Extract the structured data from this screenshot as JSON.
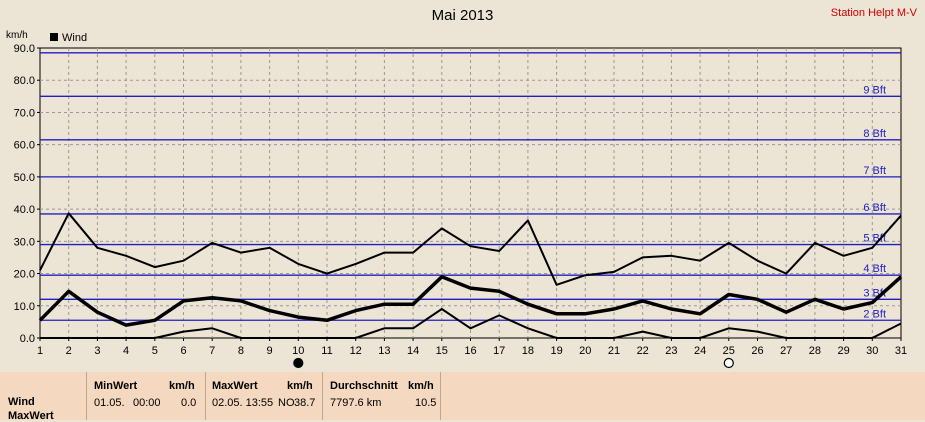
{
  "header": {
    "title": "Mai 2013",
    "station": "Station Helpt M-V",
    "y_unit": "km/h",
    "legend_label": "Wind"
  },
  "chart_data": {
    "type": "line",
    "title": "Mai 2013",
    "ylabel": "km/h",
    "ylim": [
      0,
      90
    ],
    "xlim": [
      1,
      31
    ],
    "x": [
      1,
      2,
      3,
      4,
      5,
      6,
      7,
      8,
      9,
      10,
      11,
      12,
      13,
      14,
      15,
      16,
      17,
      18,
      19,
      20,
      21,
      22,
      23,
      24,
      25,
      26,
      27,
      28,
      29,
      30,
      31
    ],
    "y_ticks": [
      "0.0",
      "10.0",
      "20.0",
      "30.0",
      "40.0",
      "50.0",
      "60.0",
      "70.0",
      "80.0",
      "90.0"
    ],
    "grid": true,
    "legend": "top-left",
    "series": [
      {
        "name": "Wind",
        "role": "max",
        "stroke": 2,
        "values": [
          21,
          38.7,
          28,
          25.5,
          22,
          24,
          29.5,
          26.5,
          28,
          23,
          20,
          23,
          26.5,
          26.5,
          34,
          28.5,
          27,
          36.5,
          16.5,
          19.5,
          20.5,
          25,
          25.5,
          24,
          29.5,
          24,
          20,
          29.5,
          25.5,
          28,
          38
        ]
      },
      {
        "name": "Wind",
        "role": "mean",
        "stroke": 3.5,
        "values": [
          5.5,
          14.5,
          8,
          4,
          5.5,
          11.5,
          12.5,
          11.5,
          8.5,
          6.5,
          5.5,
          8.5,
          10.5,
          10.5,
          19,
          15.5,
          14.5,
          10.5,
          7.5,
          7.5,
          9,
          11.5,
          9,
          7.5,
          13.5,
          12,
          8,
          12,
          9,
          11,
          19
        ]
      },
      {
        "name": "Wind",
        "role": "min",
        "stroke": 2,
        "values": [
          0,
          0,
          0,
          0,
          0,
          2,
          3,
          0,
          0,
          0,
          0,
          0,
          3,
          3,
          9,
          3,
          7,
          3,
          0,
          0,
          0,
          2,
          0,
          0,
          3,
          2,
          0,
          0,
          0,
          0,
          4.5
        ]
      }
    ],
    "beaufort_lines": [
      {
        "label": "2 Bft",
        "value": 5.5
      },
      {
        "label": "3 Bft",
        "value": 12
      },
      {
        "label": "4 Bft",
        "value": 19.5
      },
      {
        "label": "5 Bft",
        "value": 29
      },
      {
        "label": "6 Bft",
        "value": 38.5
      },
      {
        "label": "7 Bft",
        "value": 50
      },
      {
        "label": "8 Bft",
        "value": 61.5
      },
      {
        "label": "9 Bft",
        "value": 75
      },
      {
        "label": "",
        "value": 88.5
      }
    ],
    "moon_phases": [
      {
        "day": 10,
        "phase": "new-moon"
      },
      {
        "day": 25,
        "phase": "full-moon"
      }
    ],
    "colors": {
      "beaufort": "#2020c0",
      "grid": "#999999",
      "series": "#000000",
      "plot_bg": "#ece4d4"
    }
  },
  "stats": {
    "row_labels": [
      "Wind",
      "MaxWert"
    ],
    "min": {
      "header": "MinWert",
      "unit": "km/h",
      "date": "01.05.",
      "time": "00:00",
      "value": "0.0"
    },
    "max": {
      "header": "MaxWert",
      "unit": "km/h",
      "datetime": "02.05. 13:55",
      "dir": "NO",
      "value": "38.7"
    },
    "mean": {
      "header": "Durchschnitt",
      "unit": "km/h",
      "distance": "7797.6 km",
      "value": "10.5"
    }
  }
}
